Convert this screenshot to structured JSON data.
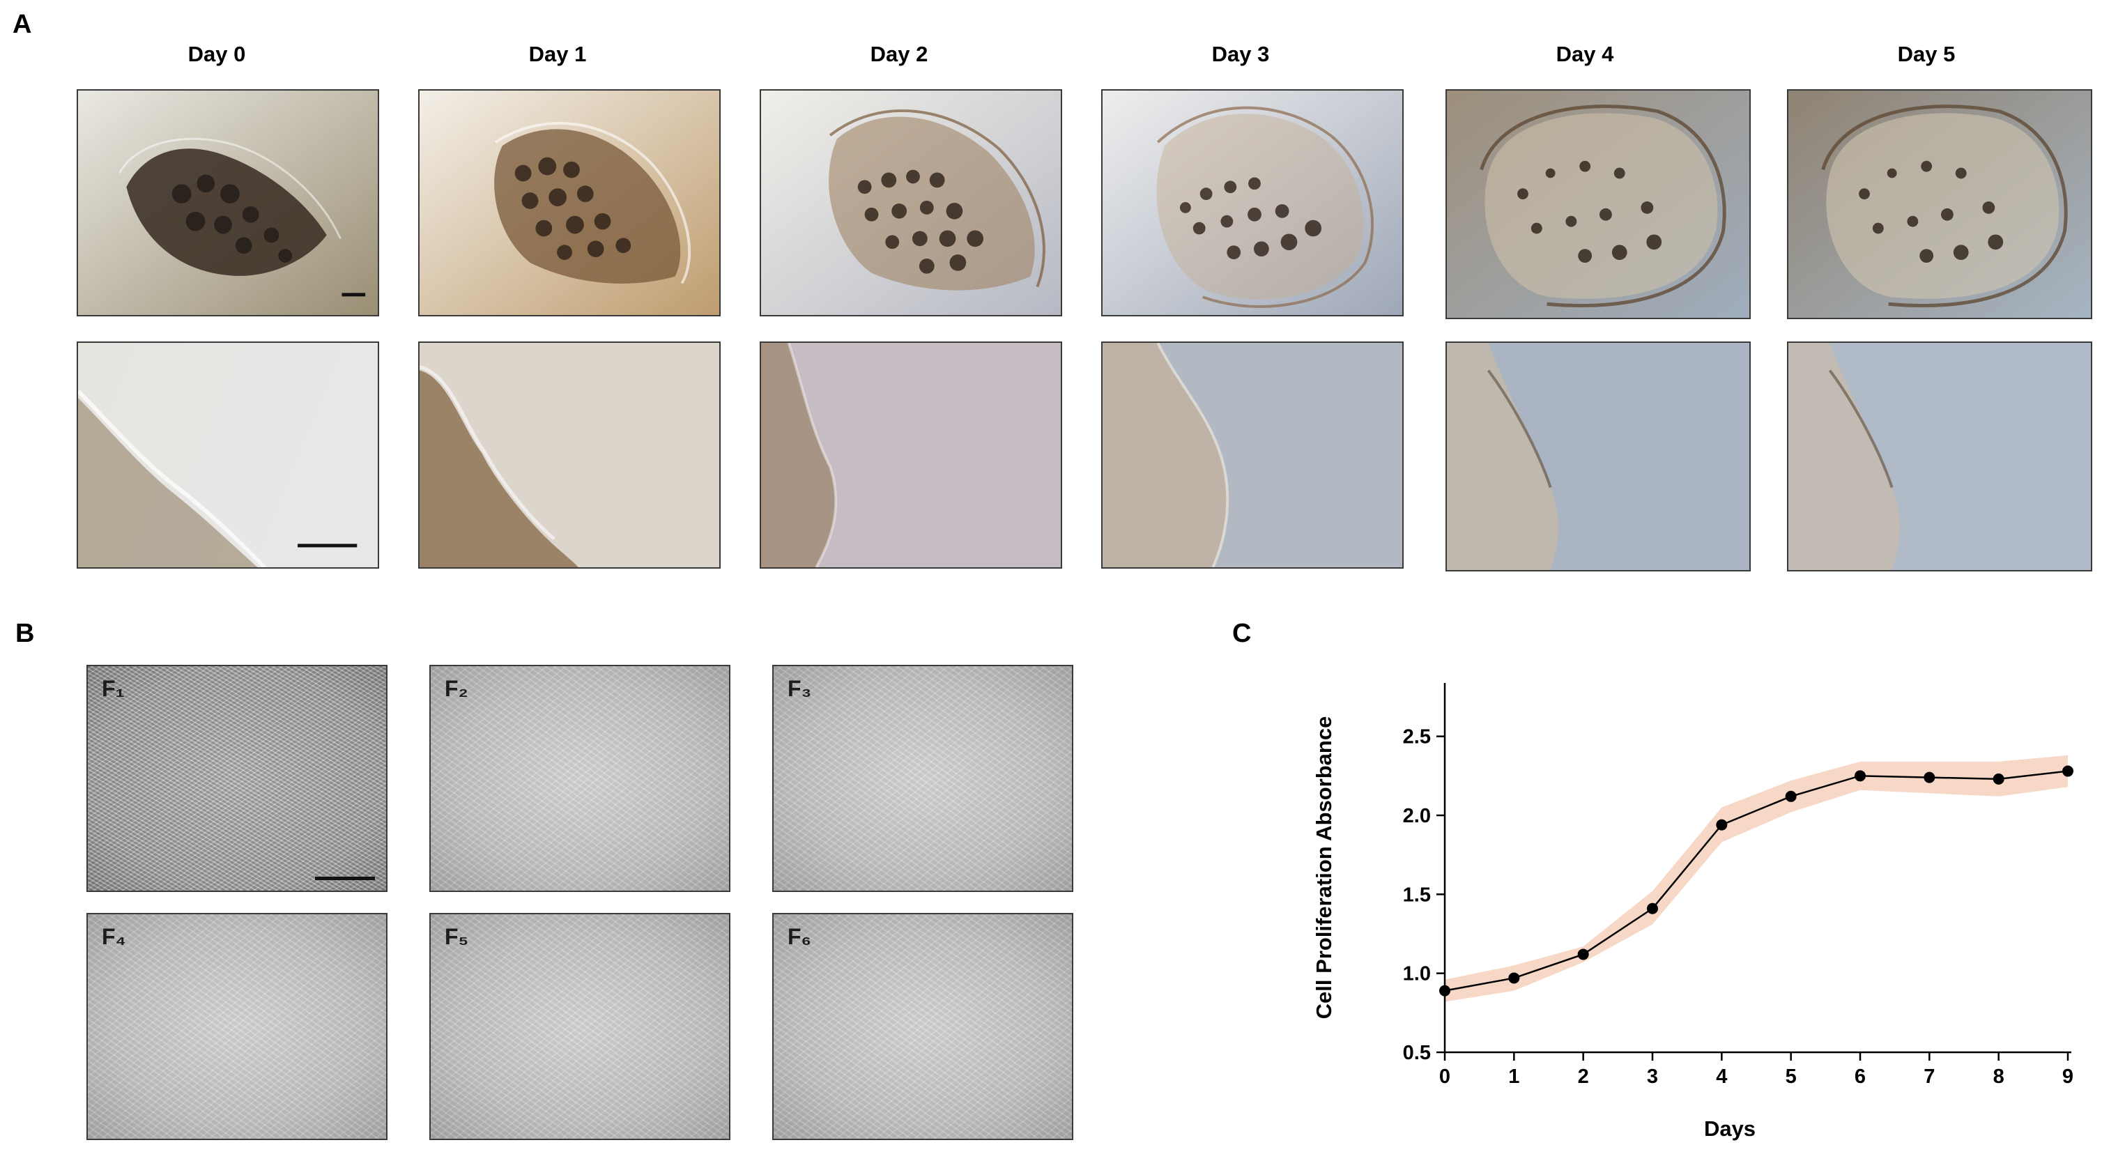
{
  "panels": {
    "a": "A",
    "b": "B",
    "c": "C"
  },
  "panel_a": {
    "days": [
      "Day 0",
      "Day 1",
      "Day 2",
      "Day 3",
      "Day 4",
      "Day 5"
    ]
  },
  "panel_b": {
    "labels": [
      "F₁",
      "F₂",
      "F₃",
      "F₄",
      "F₅",
      "F₆"
    ]
  },
  "chart_data": {
    "type": "line",
    "title": "",
    "xlabel": "Days",
    "ylabel": "Cell Proliferation Absorbance",
    "x": [
      0,
      1,
      2,
      3,
      4,
      5,
      6,
      7,
      8,
      9
    ],
    "y": [
      0.89,
      0.97,
      1.12,
      1.41,
      1.94,
      2.12,
      2.25,
      2.24,
      2.23,
      2.28
    ],
    "band_upper": [
      0.96,
      1.05,
      1.17,
      1.52,
      2.05,
      2.22,
      2.34,
      2.34,
      2.34,
      2.38
    ],
    "band_lower": [
      0.82,
      0.89,
      1.07,
      1.31,
      1.83,
      2.02,
      2.16,
      2.14,
      2.12,
      2.18
    ],
    "xlim": [
      0,
      9
    ],
    "ylim": [
      0.5,
      2.75
    ],
    "xticks": [
      "0",
      "1",
      "2",
      "3",
      "4",
      "5",
      "6",
      "7",
      "8",
      "9"
    ],
    "yticks": [
      "0.5",
      "1.0",
      "1.5",
      "2.0",
      "2.5"
    ],
    "line_color": "#000000",
    "band_color": "#f6d3bf",
    "grid": false
  }
}
